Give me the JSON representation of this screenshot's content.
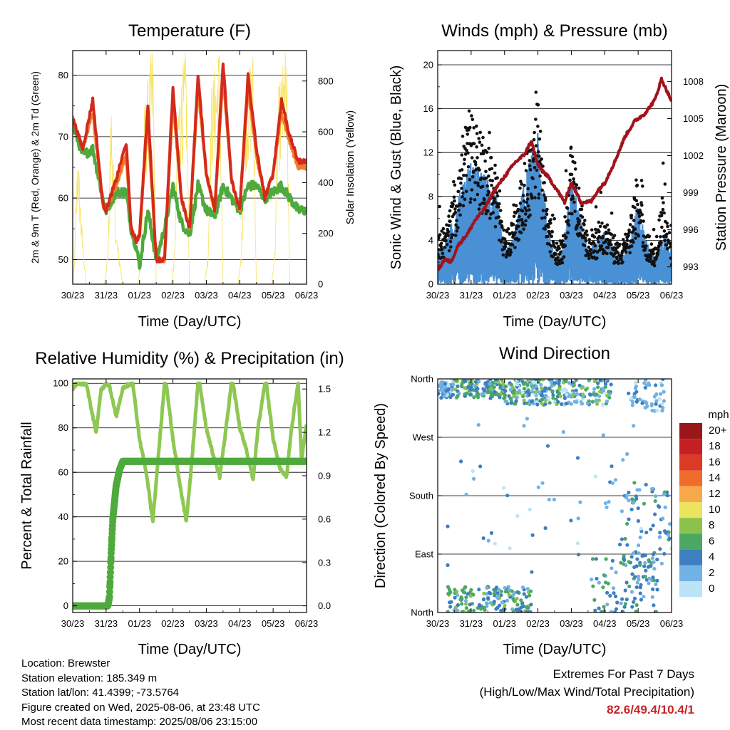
{
  "chart_data": [
    {
      "type": "line",
      "title": "Temperature (F)",
      "xlabel": "Time (Day/UTC)",
      "ylabel": "2m & 9m T (Red, Orange) & 2m Td (Green)",
      "y2label": "Solar Insolation (Yellow)",
      "x_ticks": [
        "30/23",
        "31/23",
        "01/23",
        "02/23",
        "03/23",
        "04/23",
        "05/23",
        "06/23"
      ],
      "ylim": [
        46,
        84
      ],
      "y_ticks": [
        "50",
        "60",
        "70",
        "80"
      ],
      "y2lim": [
        0,
        920
      ],
      "y2_ticks": [
        "0",
        "200",
        "400",
        "600",
        "800"
      ],
      "grid": "horizontal",
      "series": [
        {
          "color": "#d42a1c",
          "x": [
            0,
            0.3,
            0.6,
            0.9,
            1.0,
            1.3,
            1.6,
            1.75,
            1.9,
            2.0,
            2.25,
            2.5,
            2.75,
            3.0,
            3.25,
            3.5,
            3.75,
            4.0,
            4.25,
            4.5,
            4.75,
            5.0,
            5.25,
            5.5,
            5.75,
            6.0,
            6.25,
            6.5,
            6.75,
            7.0
          ],
          "values": [
            73,
            68,
            76,
            59,
            58,
            63,
            69,
            55,
            53,
            54,
            75,
            50,
            50,
            78,
            60,
            55,
            80,
            64,
            58,
            82,
            63,
            58,
            80,
            68,
            60,
            64,
            76,
            70,
            66,
            66
          ]
        },
        {
          "color": "#f07f2a",
          "x": [
            0,
            0.3,
            0.6,
            0.9,
            1.0,
            1.3,
            1.6,
            1.75,
            1.9,
            2.0,
            2.25,
            2.5,
            2.75,
            3.0,
            3.25,
            3.5,
            3.75,
            4.0,
            4.25,
            4.5,
            4.75,
            5.0,
            5.25,
            5.5,
            5.75,
            6.0,
            6.25,
            6.5,
            6.75,
            7.0
          ],
          "values": [
            73,
            68,
            74,
            59,
            58,
            62,
            67,
            55,
            53,
            54,
            73,
            50,
            50,
            76,
            60,
            55,
            78,
            64,
            58,
            80,
            63,
            58,
            78,
            67,
            60,
            64,
            74,
            69,
            65,
            65
          ]
        },
        {
          "color": "#4eaa3c",
          "x": [
            0,
            0.3,
            0.6,
            0.9,
            1.0,
            1.3,
            1.6,
            1.75,
            1.9,
            2.0,
            2.25,
            2.5,
            2.75,
            3.0,
            3.25,
            3.5,
            3.75,
            4.0,
            4.25,
            4.5,
            4.75,
            5.0,
            5.25,
            5.5,
            5.75,
            6.0,
            6.25,
            6.5,
            6.75,
            7.0
          ],
          "values": [
            72,
            67,
            68,
            60,
            58,
            61,
            61,
            55,
            52,
            49,
            58,
            50,
            55,
            62,
            56,
            54,
            62,
            58,
            57,
            62,
            60,
            58,
            62,
            62,
            60,
            61,
            62,
            60,
            58,
            58
          ]
        },
        {
          "color": "#f7e35c",
          "x": [
            0,
            0.05,
            0.15,
            0.25,
            0.4,
            0.5,
            0.8,
            0.95,
            1.05,
            1.15,
            1.3,
            1.5,
            1.75,
            1.95,
            2.05,
            2.15,
            2.4,
            2.5,
            2.75,
            2.95,
            3.05,
            3.15,
            3.4,
            3.5,
            3.75,
            3.95,
            4.05,
            4.15,
            4.4,
            4.5,
            4.75,
            4.95,
            5.05,
            5.15,
            5.4,
            5.5,
            5.75,
            5.95,
            6.05,
            6.15,
            6.4,
            6.5,
            6.75,
            6.95
          ],
          "values": [
            0,
            80,
            520,
            260,
            0,
            0,
            0,
            0,
            120,
            680,
            200,
            0,
            0,
            0,
            120,
            650,
            880,
            0,
            0,
            0,
            120,
            700,
            850,
            0,
            0,
            0,
            120,
            720,
            880,
            0,
            0,
            0,
            120,
            720,
            850,
            0,
            0,
            0,
            120,
            700,
            870,
            0,
            0,
            0
          ]
        }
      ]
    },
    {
      "type": "line",
      "title": "Winds (mph) & Pressure (mb)",
      "xlabel": "Time (Day/UTC)",
      "ylabel": "Sonic Wind & Gust (Blue, Black)",
      "y2label": "Station Pressure (Maroon)",
      "x_ticks": [
        "30/23",
        "31/23",
        "01/23",
        "02/23",
        "03/23",
        "04/23",
        "05/23",
        "06/23"
      ],
      "ylim": [
        0,
        21.3
      ],
      "y_ticks": [
        "0",
        "4",
        "8",
        "12",
        "16",
        "20"
      ],
      "y2lim": [
        991.6,
        1010.5
      ],
      "y2_ticks": [
        "993",
        "996",
        "999",
        "1002",
        "1005",
        "1008"
      ],
      "grid": "horizontal",
      "series": [
        {
          "color": "#4a90d4",
          "x": [
            0,
            0.25,
            0.5,
            0.75,
            1.0,
            1.25,
            1.5,
            1.75,
            2.0,
            2.25,
            2.5,
            2.75,
            3.0,
            3.25,
            3.5,
            3.75,
            4.0,
            4.25,
            4.5,
            4.75,
            5.0,
            5.25,
            5.5,
            5.75,
            6.0,
            6.25,
            6.5,
            6.75,
            7.0
          ],
          "values": [
            2,
            2.5,
            4,
            6,
            7,
            6.5,
            6,
            5,
            2,
            2.5,
            5,
            7,
            8.5,
            4,
            1.5,
            2,
            6,
            4,
            2,
            2.5,
            3,
            2,
            1.5,
            2.5,
            4.5,
            2.5,
            1.5,
            3,
            2
          ]
        },
        {
          "color": "#111111",
          "x": [
            0,
            0.25,
            0.5,
            0.75,
            1.0,
            1.25,
            1.5,
            1.75,
            2.0,
            2.25,
            2.5,
            2.75,
            3.0,
            3.25,
            3.5,
            3.75,
            4.0,
            4.25,
            4.5,
            4.75,
            5.0,
            5.25,
            5.5,
            5.75,
            6.0,
            6.25,
            6.5,
            6.75,
            7.0
          ],
          "values": [
            4,
            4.5,
            7,
            12,
            13,
            12,
            11,
            9,
            4,
            5,
            8,
            11,
            14,
            7,
            3,
            3.5,
            11,
            7,
            3.5,
            4,
            5,
            3.5,
            3,
            5,
            8,
            4,
            3,
            7,
            3
          ]
        },
        {
          "color": "#a0131c",
          "x": [
            0,
            0.2,
            0.4,
            0.6,
            0.9,
            1.1,
            1.4,
            1.7,
            2.0,
            2.3,
            2.6,
            2.8,
            3.0,
            3.3,
            3.6,
            3.8,
            4.0,
            4.3,
            4.6,
            4.8,
            5.0,
            5.3,
            5.6,
            5.9,
            6.2,
            6.5,
            6.7,
            6.9,
            7.0
          ],
          "values": [
            992.7,
            993.6,
            993.4,
            994.7,
            995.7,
            996.7,
            997.7,
            999.2,
            1000.3,
            1001.4,
            1002.1,
            1003.2,
            1001.2,
            1000.3,
            999.1,
            998.2,
            999.8,
            998.2,
            998.3,
            999.2,
            999.8,
            1001.5,
            1003.5,
            1004.8,
            1005.4,
            1006.5,
            1008.2,
            1007.0,
            1006.4
          ]
        }
      ]
    },
    {
      "type": "line",
      "title": "Relative Humidity (%) & Precipitation (in)",
      "xlabel": "Time (Day/UTC)",
      "ylabel": "Percent & Total Rainfall",
      "x_ticks": [
        "30/23",
        "31/23",
        "01/23",
        "02/23",
        "03/23",
        "04/23",
        "05/23",
        "06/23"
      ],
      "ylim": [
        -3,
        102
      ],
      "y_ticks": [
        "0",
        "20",
        "40",
        "60",
        "80",
        "100"
      ],
      "y2lim": [
        -0.046,
        1.57
      ],
      "y2_ticks": [
        "0.0",
        "0.3",
        "0.6",
        "0.9",
        "1.2",
        "1.5"
      ],
      "grid": "horizontal",
      "series": [
        {
          "color": "#8ec752",
          "x": [
            0,
            0.1,
            0.4,
            0.7,
            0.85,
            1.0,
            1.1,
            1.3,
            1.5,
            1.75,
            1.8,
            2.0,
            2.2,
            2.4,
            2.55,
            2.75,
            2.8,
            3.0,
            3.2,
            3.4,
            3.55,
            3.75,
            3.8,
            4.0,
            4.2,
            4.4,
            4.55,
            4.75,
            4.8,
            5.0,
            5.2,
            5.4,
            5.55,
            5.75,
            5.8,
            6.0,
            6.2,
            6.4,
            6.55,
            6.75,
            6.85,
            7.0
          ],
          "values": [
            97,
            100,
            100,
            78,
            97,
            100,
            99,
            85,
            98,
            100,
            100,
            75,
            60,
            38,
            65,
            100,
            100,
            75,
            55,
            38,
            62,
            100,
            100,
            80,
            68,
            58,
            75,
            100,
            100,
            80,
            70,
            57,
            80,
            100,
            100,
            75,
            62,
            58,
            80,
            100,
            65,
            82
          ]
        },
        {
          "color": "#4eaa3c",
          "x": [
            0,
            1.05,
            1.1,
            1.15,
            1.2,
            1.3,
            1.4,
            1.5,
            7.0
          ],
          "values": [
            0,
            0,
            0.06,
            0.36,
            0.6,
            0.83,
            0.94,
            1.0,
            1.0
          ]
        }
      ]
    },
    {
      "type": "scatter",
      "title": "Wind Direction",
      "xlabel": "Time (Day/UTC)",
      "ylabel": "Direction (Colored By Speed)",
      "x_ticks": [
        "30/23",
        "31/23",
        "01/23",
        "02/23",
        "03/23",
        "04/23",
        "05/23",
        "06/23"
      ],
      "y_ticks": [
        "North",
        "East",
        "South",
        "West",
        "North"
      ],
      "ylim": [
        0,
        360
      ],
      "grid": "horizontal",
      "legend_title": "mph",
      "legend_labels": [
        "20+",
        "18",
        "16",
        "14",
        "12",
        "10",
        "8",
        "6",
        "4",
        "2",
        "0"
      ],
      "legend_colors": [
        "#9b161b",
        "#c41f23",
        "#dc3a27",
        "#ef6c2a",
        "#f7a94a",
        "#ece35f",
        "#8bc24a",
        "#4aa862",
        "#3d7fbf",
        "#72b1e3",
        "#bde3f7"
      ],
      "clusters": [
        {
          "x": [
            0.0,
            0.5
          ],
          "y": [
            330,
            360
          ],
          "speed": [
            0,
            4
          ],
          "n": 70
        },
        {
          "x": [
            0.5,
            2.0
          ],
          "y": [
            330,
            360
          ],
          "speed": [
            2,
            8
          ],
          "n": 130
        },
        {
          "x": [
            2.0,
            3.6
          ],
          "y": [
            320,
            360
          ],
          "speed": [
            0,
            8
          ],
          "n": 150
        },
        {
          "x": [
            3.6,
            5.2
          ],
          "y": [
            320,
            360
          ],
          "speed": [
            0,
            8
          ],
          "n": 110
        },
        {
          "x": [
            5.7,
            6.8
          ],
          "y": [
            310,
            360
          ],
          "speed": [
            0,
            4
          ],
          "n": 50
        },
        {
          "x": [
            0.3,
            2.8
          ],
          "y": [
            0,
            40
          ],
          "speed": [
            2,
            8
          ],
          "n": 150
        },
        {
          "x": [
            4.6,
            6.6
          ],
          "y": [
            0,
            90
          ],
          "speed": [
            2,
            6
          ],
          "n": 90
        },
        {
          "x": [
            5.5,
            7.0
          ],
          "y": [
            60,
            200
          ],
          "speed": [
            2,
            6
          ],
          "n": 70
        },
        {
          "x": [
            0.0,
            7.0
          ],
          "y": [
            60,
            300
          ],
          "speed": [
            0,
            4
          ],
          "n": 60
        }
      ]
    }
  ],
  "info": {
    "location": "Location: Brewster",
    "elevation": "Station elevation: 185.349 m",
    "latlon": "Station lat/lon: 41.4399; -73.5764",
    "created": "Figure created on Wed, 2025-08-06, at 23:48 UTC",
    "recent": "Most recent data timestamp: 2025/08/06 23:15:00"
  },
  "extremes": {
    "title": "Extremes For Past 7 Days",
    "subtitle": "(High/Low/Max Wind/Total Precipitation)",
    "values": "82.6/49.4/10.4/1"
  }
}
